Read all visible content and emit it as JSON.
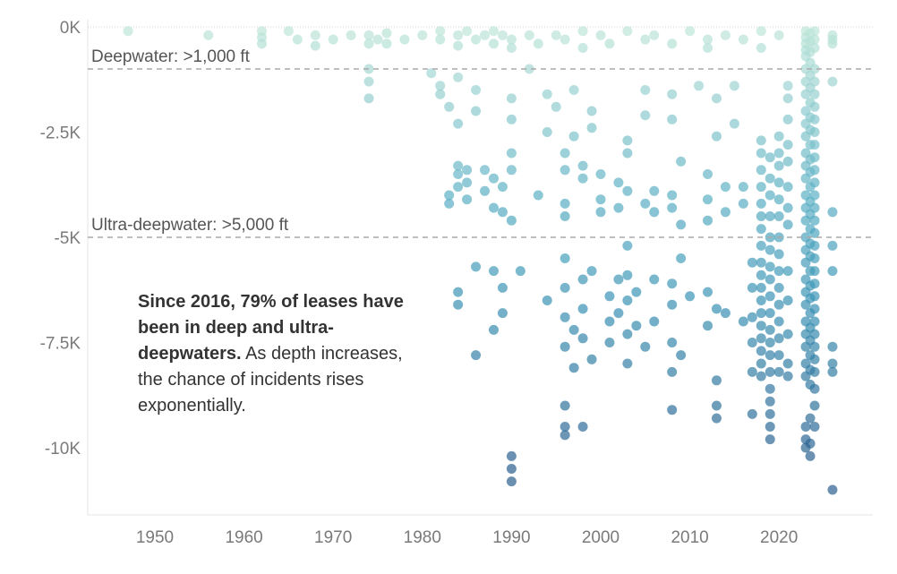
{
  "chart_data": {
    "type": "scatter",
    "title": "",
    "xlabel": "",
    "ylabel": "",
    "xlim": [
      1943,
      2028
    ],
    "ylim": [
      -11500,
      0
    ],
    "x_ticks": [
      1950,
      1960,
      1970,
      1980,
      1990,
      2000,
      2010,
      2020
    ],
    "x_tick_labels": [
      "1950",
      "1960",
      "1970",
      "1980",
      "1990",
      "2000",
      "2010",
      "2020"
    ],
    "y_ticks": [
      0,
      -2500,
      -5000,
      -7500,
      -10000
    ],
    "y_tick_labels": [
      "0K",
      "-2.5K",
      "-5K",
      "-7.5K",
      "-10K"
    ],
    "grid": false,
    "color_scale": {
      "shallow": "#bfe6d8",
      "mid": "#5bb0c4",
      "deep": "#3a93b5",
      "deepest": "#2c5f8e"
    },
    "reference_lines": [
      {
        "y": -1000,
        "label": "Deepwater: >1,000 ft"
      },
      {
        "y": -5000,
        "label": "Ultra-deepwater: >5,000 ft"
      }
    ],
    "annotation": {
      "bold": "Since 2016, 79% of leases have been in deep and ultra-deepwaters.",
      "text": " As depth increases, the chance of incidents rises exponentially."
    },
    "points": [
      [
        1947,
        -100
      ],
      [
        1956,
        -200
      ],
      [
        1962,
        -100
      ],
      [
        1962,
        -250
      ],
      [
        1962,
        -400
      ],
      [
        1965,
        -100
      ],
      [
        1966,
        -300
      ],
      [
        1968,
        -200
      ],
      [
        1968,
        -450
      ],
      [
        1970,
        -300
      ],
      [
        1972,
        -200
      ],
      [
        1974,
        -400
      ],
      [
        1974,
        -200
      ],
      [
        1975,
        -300
      ],
      [
        1976,
        -150
      ],
      [
        1976,
        -400
      ],
      [
        1978,
        -300
      ],
      [
        1980,
        -200
      ],
      [
        1982,
        -300
      ],
      [
        1982,
        -100
      ],
      [
        1984,
        -200
      ],
      [
        1984,
        -450
      ],
      [
        1985,
        -100
      ],
      [
        1986,
        -300
      ],
      [
        1987,
        -200
      ],
      [
        1988,
        -100
      ],
      [
        1988,
        -400
      ],
      [
        1989,
        -200
      ],
      [
        1990,
        -300
      ],
      [
        1990,
        -500
      ],
      [
        1992,
        -200
      ],
      [
        1993,
        -400
      ],
      [
        1995,
        -200
      ],
      [
        1996,
        -300
      ],
      [
        1998,
        -100
      ],
      [
        1998,
        -500
      ],
      [
        2000,
        -200
      ],
      [
        2001,
        -400
      ],
      [
        2003,
        -100
      ],
      [
        2005,
        -300
      ],
      [
        2006,
        -200
      ],
      [
        2008,
        -400
      ],
      [
        2010,
        -100
      ],
      [
        2012,
        -300
      ],
      [
        2012,
        -500
      ],
      [
        2014,
        -200
      ],
      [
        2016,
        -300
      ],
      [
        2018,
        -500
      ],
      [
        2018,
        -100
      ],
      [
        2020,
        -200
      ],
      [
        2023,
        -100
      ],
      [
        2023,
        -250
      ],
      [
        2023,
        -400
      ],
      [
        2023,
        -550
      ],
      [
        2023.5,
        -150
      ],
      [
        2023.5,
        -350
      ],
      [
        2023.5,
        -600
      ],
      [
        2024,
        -100
      ],
      [
        2024,
        -300
      ],
      [
        2024,
        -500
      ],
      [
        2026,
        -200
      ],
      [
        2026,
        -400
      ],
      [
        1974,
        -1000
      ],
      [
        1974,
        -1300
      ],
      [
        1974,
        -1700
      ],
      [
        1981,
        -1100
      ],
      [
        1982,
        -1400
      ],
      [
        1982,
        -1600
      ],
      [
        1983,
        -1900
      ],
      [
        1984,
        -1200
      ],
      [
        1984,
        -2300
      ],
      [
        1986,
        -1500
      ],
      [
        1986,
        -2000
      ],
      [
        1990,
        -1700
      ],
      [
        1990,
        -2200
      ],
      [
        1992,
        -1000
      ],
      [
        1994,
        -1600
      ],
      [
        1994,
        -2500
      ],
      [
        1995,
        -1900
      ],
      [
        1997,
        -1500
      ],
      [
        1997,
        -2600
      ],
      [
        1999,
        -2000
      ],
      [
        1999,
        -2400
      ],
      [
        2003,
        -2700
      ],
      [
        2005,
        -1500
      ],
      [
        2005,
        -2100
      ],
      [
        2008,
        -1600
      ],
      [
        2008,
        -2200
      ],
      [
        2011,
        -1400
      ],
      [
        2013,
        -1700
      ],
      [
        2013,
        -2600
      ],
      [
        2015,
        -1400
      ],
      [
        2015,
        -2300
      ],
      [
        1983,
        -4000
      ],
      [
        1983,
        -4200
      ],
      [
        1984,
        -3300
      ],
      [
        1984,
        -3500
      ],
      [
        1984,
        -3800
      ],
      [
        1985,
        -3400
      ],
      [
        1985,
        -3700
      ],
      [
        1985,
        -4100
      ],
      [
        1987,
        -3400
      ],
      [
        1987,
        -3900
      ],
      [
        1988,
        -3600
      ],
      [
        1988,
        -4300
      ],
      [
        1989,
        -3800
      ],
      [
        1989,
        -4400
      ],
      [
        1990,
        -3000
      ],
      [
        1990,
        -3400
      ],
      [
        1990,
        -4600
      ],
      [
        1993,
        -4000
      ],
      [
        1996,
        -3000
      ],
      [
        1996,
        -3400
      ],
      [
        1996,
        -4200
      ],
      [
        1996,
        -4500
      ],
      [
        1998,
        -3300
      ],
      [
        1998,
        -3600
      ],
      [
        2000,
        -3500
      ],
      [
        2000,
        -4100
      ],
      [
        2000,
        -4400
      ],
      [
        2002,
        -3700
      ],
      [
        2002,
        -4300
      ],
      [
        2003,
        -3000
      ],
      [
        2003,
        -3900
      ],
      [
        2005,
        -4200
      ],
      [
        2006,
        -3900
      ],
      [
        2006,
        -4400
      ],
      [
        2008,
        -4000
      ],
      [
        2008,
        -4300
      ],
      [
        2009,
        -3200
      ],
      [
        2009,
        -4700
      ],
      [
        2012,
        -3500
      ],
      [
        2012,
        -4100
      ],
      [
        2012,
        -4600
      ],
      [
        2014,
        -3800
      ],
      [
        2014,
        -4400
      ],
      [
        2016,
        -3800
      ],
      [
        2016,
        -4200
      ],
      [
        1984,
        -6300
      ],
      [
        1984,
        -6600
      ],
      [
        1986,
        -5700
      ],
      [
        1986,
        -7800
      ],
      [
        1988,
        -5800
      ],
      [
        1988,
        -7200
      ],
      [
        1989,
        -6200
      ],
      [
        1989,
        -6800
      ],
      [
        1991,
        -5800
      ],
      [
        1994,
        -6500
      ],
      [
        1996,
        -5500
      ],
      [
        1996,
        -6200
      ],
      [
        1996,
        -6900
      ],
      [
        1996,
        -7600
      ],
      [
        1997,
        -7200
      ],
      [
        1997,
        -8100
      ],
      [
        1998,
        -6000
      ],
      [
        1998,
        -6700
      ],
      [
        1998,
        -7400
      ],
      [
        1999,
        -5800
      ],
      [
        1999,
        -7900
      ],
      [
        2001,
        -6400
      ],
      [
        2001,
        -7000
      ],
      [
        2001,
        -7500
      ],
      [
        2002,
        -6000
      ],
      [
        2002,
        -6800
      ],
      [
        2003,
        -5200
      ],
      [
        2003,
        -5900
      ],
      [
        2003,
        -6500
      ],
      [
        2003,
        -7300
      ],
      [
        2003,
        -8000
      ],
      [
        2004,
        -6300
      ],
      [
        2004,
        -7100
      ],
      [
        2005,
        -7600
      ],
      [
        2006,
        -6000
      ],
      [
        2006,
        -7000
      ],
      [
        2008,
        -6100
      ],
      [
        2008,
        -6600
      ],
      [
        2008,
        -7500
      ],
      [
        2008,
        -8200
      ],
      [
        2009,
        -5500
      ],
      [
        2009,
        -7800
      ],
      [
        2010,
        -6400
      ],
      [
        2012,
        -6300
      ],
      [
        2012,
        -7100
      ],
      [
        2013,
        -6700
      ],
      [
        2013,
        -8400
      ],
      [
        2013,
        -9000
      ],
      [
        2014,
        -6800
      ],
      [
        2016,
        -7000
      ],
      [
        2017,
        -5600
      ],
      [
        2017,
        -6200
      ],
      [
        2017,
        -6900
      ],
      [
        2017,
        -7500
      ],
      [
        2017,
        -8200
      ],
      [
        2017,
        -9200
      ],
      [
        1990,
        -10200
      ],
      [
        1990,
        -10500
      ],
      [
        1990,
        -10800
      ],
      [
        1996,
        -9000
      ],
      [
        1996,
        -9500
      ],
      [
        1996,
        -9700
      ],
      [
        1998,
        -9500
      ],
      [
        2008,
        -9100
      ],
      [
        2013,
        -9300
      ],
      [
        2018,
        -2700
      ],
      [
        2018,
        -3000
      ],
      [
        2018,
        -3400
      ],
      [
        2018,
        -3800
      ],
      [
        2018,
        -4200
      ],
      [
        2018,
        -4500
      ],
      [
        2018,
        -4800
      ],
      [
        2018,
        -5200
      ],
      [
        2018,
        -5600
      ],
      [
        2018,
        -5900
      ],
      [
        2018,
        -6200
      ],
      [
        2018,
        -6500
      ],
      [
        2018,
        -6800
      ],
      [
        2018,
        -7100
      ],
      [
        2018,
        -7400
      ],
      [
        2018,
        -7700
      ],
      [
        2018,
        -8000
      ],
      [
        2018,
        -8300
      ],
      [
        2019,
        -3100
      ],
      [
        2019,
        -3600
      ],
      [
        2019,
        -4000
      ],
      [
        2019,
        -4500
      ],
      [
        2019,
        -5000
      ],
      [
        2019,
        -5300
      ],
      [
        2019,
        -5700
      ],
      [
        2019,
        -6000
      ],
      [
        2019,
        -6400
      ],
      [
        2019,
        -6800
      ],
      [
        2019,
        -7200
      ],
      [
        2019,
        -7500
      ],
      [
        2019,
        -7800
      ],
      [
        2019,
        -8200
      ],
      [
        2019,
        -8600
      ],
      [
        2019,
        -8900
      ],
      [
        2019,
        -9200
      ],
      [
        2019,
        -9500
      ],
      [
        2019,
        -9800
      ],
      [
        2020,
        -2600
      ],
      [
        2020,
        -3000
      ],
      [
        2020,
        -3300
      ],
      [
        2020,
        -3700
      ],
      [
        2020,
        -4100
      ],
      [
        2020,
        -4500
      ],
      [
        2020,
        -5000
      ],
      [
        2020,
        -5400
      ],
      [
        2020,
        -5800
      ],
      [
        2020,
        -6200
      ],
      [
        2020,
        -6600
      ],
      [
        2020,
        -7000
      ],
      [
        2020,
        -7400
      ],
      [
        2020,
        -7800
      ],
      [
        2020,
        -8200
      ],
      [
        2021,
        -1400
      ],
      [
        2021,
        -1700
      ],
      [
        2021,
        -2200
      ],
      [
        2021,
        -2800
      ],
      [
        2021,
        -3200
      ],
      [
        2021,
        -3800
      ],
      [
        2021,
        -4300
      ],
      [
        2021,
        -4700
      ],
      [
        2021,
        -5800
      ],
      [
        2021,
        -6500
      ],
      [
        2021,
        -7300
      ],
      [
        2021,
        -8000
      ],
      [
        2021,
        -8300
      ],
      [
        2023,
        -700
      ],
      [
        2023,
        -1000
      ],
      [
        2023,
        -1300
      ],
      [
        2023,
        -1600
      ],
      [
        2023,
        -2000
      ],
      [
        2023,
        -2300
      ],
      [
        2023,
        -2600
      ],
      [
        2023,
        -3000
      ],
      [
        2023,
        -3300
      ],
      [
        2023,
        -3600
      ],
      [
        2023,
        -4000
      ],
      [
        2023,
        -4300
      ],
      [
        2023,
        -4600
      ],
      [
        2023,
        -5000
      ],
      [
        2023,
        -5300
      ],
      [
        2023,
        -5600
      ],
      [
        2023,
        -6000
      ],
      [
        2023,
        -6300
      ],
      [
        2023,
        -6600
      ],
      [
        2023,
        -7000
      ],
      [
        2023,
        -7300
      ],
      [
        2023,
        -7600
      ],
      [
        2023,
        -8000
      ],
      [
        2023,
        -8300
      ],
      [
        2023,
        -9500
      ],
      [
        2023,
        -9800
      ],
      [
        2023,
        -10000
      ],
      [
        2023.5,
        -850
      ],
      [
        2023.5,
        -1150
      ],
      [
        2023.5,
        -1450
      ],
      [
        2023.5,
        -1800
      ],
      [
        2023.5,
        -2150
      ],
      [
        2023.5,
        -2450
      ],
      [
        2023.5,
        -2800
      ],
      [
        2023.5,
        -3150
      ],
      [
        2023.5,
        -3450
      ],
      [
        2023.5,
        -3800
      ],
      [
        2023.5,
        -4150
      ],
      [
        2023.5,
        -4450
      ],
      [
        2023.5,
        -4800
      ],
      [
        2023.5,
        -5150
      ],
      [
        2023.5,
        -5450
      ],
      [
        2023.5,
        -5800
      ],
      [
        2023.5,
        -6150
      ],
      [
        2023.5,
        -6450
      ],
      [
        2023.5,
        -6800
      ],
      [
        2023.5,
        -7150
      ],
      [
        2023.5,
        -7450
      ],
      [
        2023.5,
        -7800
      ],
      [
        2023.5,
        -8150
      ],
      [
        2023.5,
        -8500
      ],
      [
        2023.5,
        -9300
      ],
      [
        2023.5,
        -9900
      ],
      [
        2023.5,
        -10200
      ],
      [
        2024,
        -1000
      ],
      [
        2024,
        -1300
      ],
      [
        2024,
        -1600
      ],
      [
        2024,
        -1900
      ],
      [
        2024,
        -2200
      ],
      [
        2024,
        -2500
      ],
      [
        2024,
        -2800
      ],
      [
        2024,
        -3100
      ],
      [
        2024,
        -3400
      ],
      [
        2024,
        -3700
      ],
      [
        2024,
        -4000
      ],
      [
        2024,
        -4300
      ],
      [
        2024,
        -4600
      ],
      [
        2024,
        -4900
      ],
      [
        2024,
        -5200
      ],
      [
        2024,
        -5500
      ],
      [
        2024,
        -5800
      ],
      [
        2024,
        -6100
      ],
      [
        2024,
        -6400
      ],
      [
        2024,
        -6700
      ],
      [
        2024,
        -7000
      ],
      [
        2024,
        -7300
      ],
      [
        2024,
        -7600
      ],
      [
        2024,
        -7900
      ],
      [
        2024,
        -8200
      ],
      [
        2024,
        -8600
      ],
      [
        2024,
        -9000
      ],
      [
        2024,
        -9500
      ],
      [
        2026,
        -300
      ],
      [
        2026,
        -1300
      ],
      [
        2026,
        -4400
      ],
      [
        2026,
        -5200
      ],
      [
        2026,
        -5800
      ],
      [
        2026,
        -7600
      ],
      [
        2026,
        -8000
      ],
      [
        2026,
        -8200
      ],
      [
        2026,
        -11000
      ]
    ]
  }
}
